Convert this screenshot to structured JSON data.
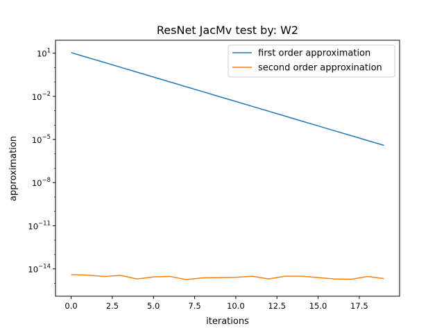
{
  "chart_data": {
    "type": "line",
    "title": "ResNet JacMv  test by: W2",
    "xlabel": "iterations",
    "ylabel": "approximation",
    "yscale": "log",
    "xlim": [
      -0.95,
      19.95
    ],
    "ylog_range": [
      -15.9,
      1.9
    ],
    "grid": false,
    "legend_position": "top-right",
    "x_ticks": [
      {
        "value": 0,
        "label": "0.0"
      },
      {
        "value": 2.5,
        "label": "2.5"
      },
      {
        "value": 5,
        "label": "5.0"
      },
      {
        "value": 7.5,
        "label": "7.5"
      },
      {
        "value": 10,
        "label": "10.0"
      },
      {
        "value": 12.5,
        "label": "12.5"
      },
      {
        "value": 15,
        "label": "15.0"
      },
      {
        "value": 17.5,
        "label": "17.5"
      }
    ],
    "y_ticks": [
      {
        "exp": 1,
        "base": "10",
        "sup": "1"
      },
      {
        "exp": -2,
        "base": "10",
        "sup": "−2"
      },
      {
        "exp": -5,
        "base": "10",
        "sup": "−5"
      },
      {
        "exp": -8,
        "base": "10",
        "sup": "−8"
      },
      {
        "exp": -11,
        "base": "10",
        "sup": "−11"
      },
      {
        "exp": -14,
        "base": "10",
        "sup": "−14"
      }
    ],
    "x": [
      0,
      1,
      2,
      3,
      4,
      5,
      6,
      7,
      8,
      9,
      10,
      11,
      12,
      13,
      14,
      15,
      16,
      17,
      18,
      19
    ],
    "series": [
      {
        "name": "first order approximation",
        "color": "#1f77b4",
        "values": [
          11,
          5,
          2.3,
          1.05,
          0.48,
          0.22,
          0.1,
          0.046,
          0.021,
          0.0096,
          0.0044,
          0.002,
          0.00092,
          0.00042,
          0.00019,
          8.8e-05,
          4e-05,
          1.85e-05,
          8.5e-06,
          3.9e-06
        ]
      },
      {
        "name": "second order approxination",
        "color": "#ff7f0e",
        "values": [
          4e-15,
          3.7e-15,
          3e-15,
          3.5e-15,
          2e-15,
          2.8e-15,
          3e-15,
          1.8e-15,
          2.4e-15,
          2.5e-15,
          2.6e-15,
          3.1e-15,
          2e-15,
          3.1e-15,
          3.1e-15,
          2.5e-15,
          2e-15,
          1.9e-15,
          3e-15,
          2.1e-15
        ]
      }
    ]
  }
}
